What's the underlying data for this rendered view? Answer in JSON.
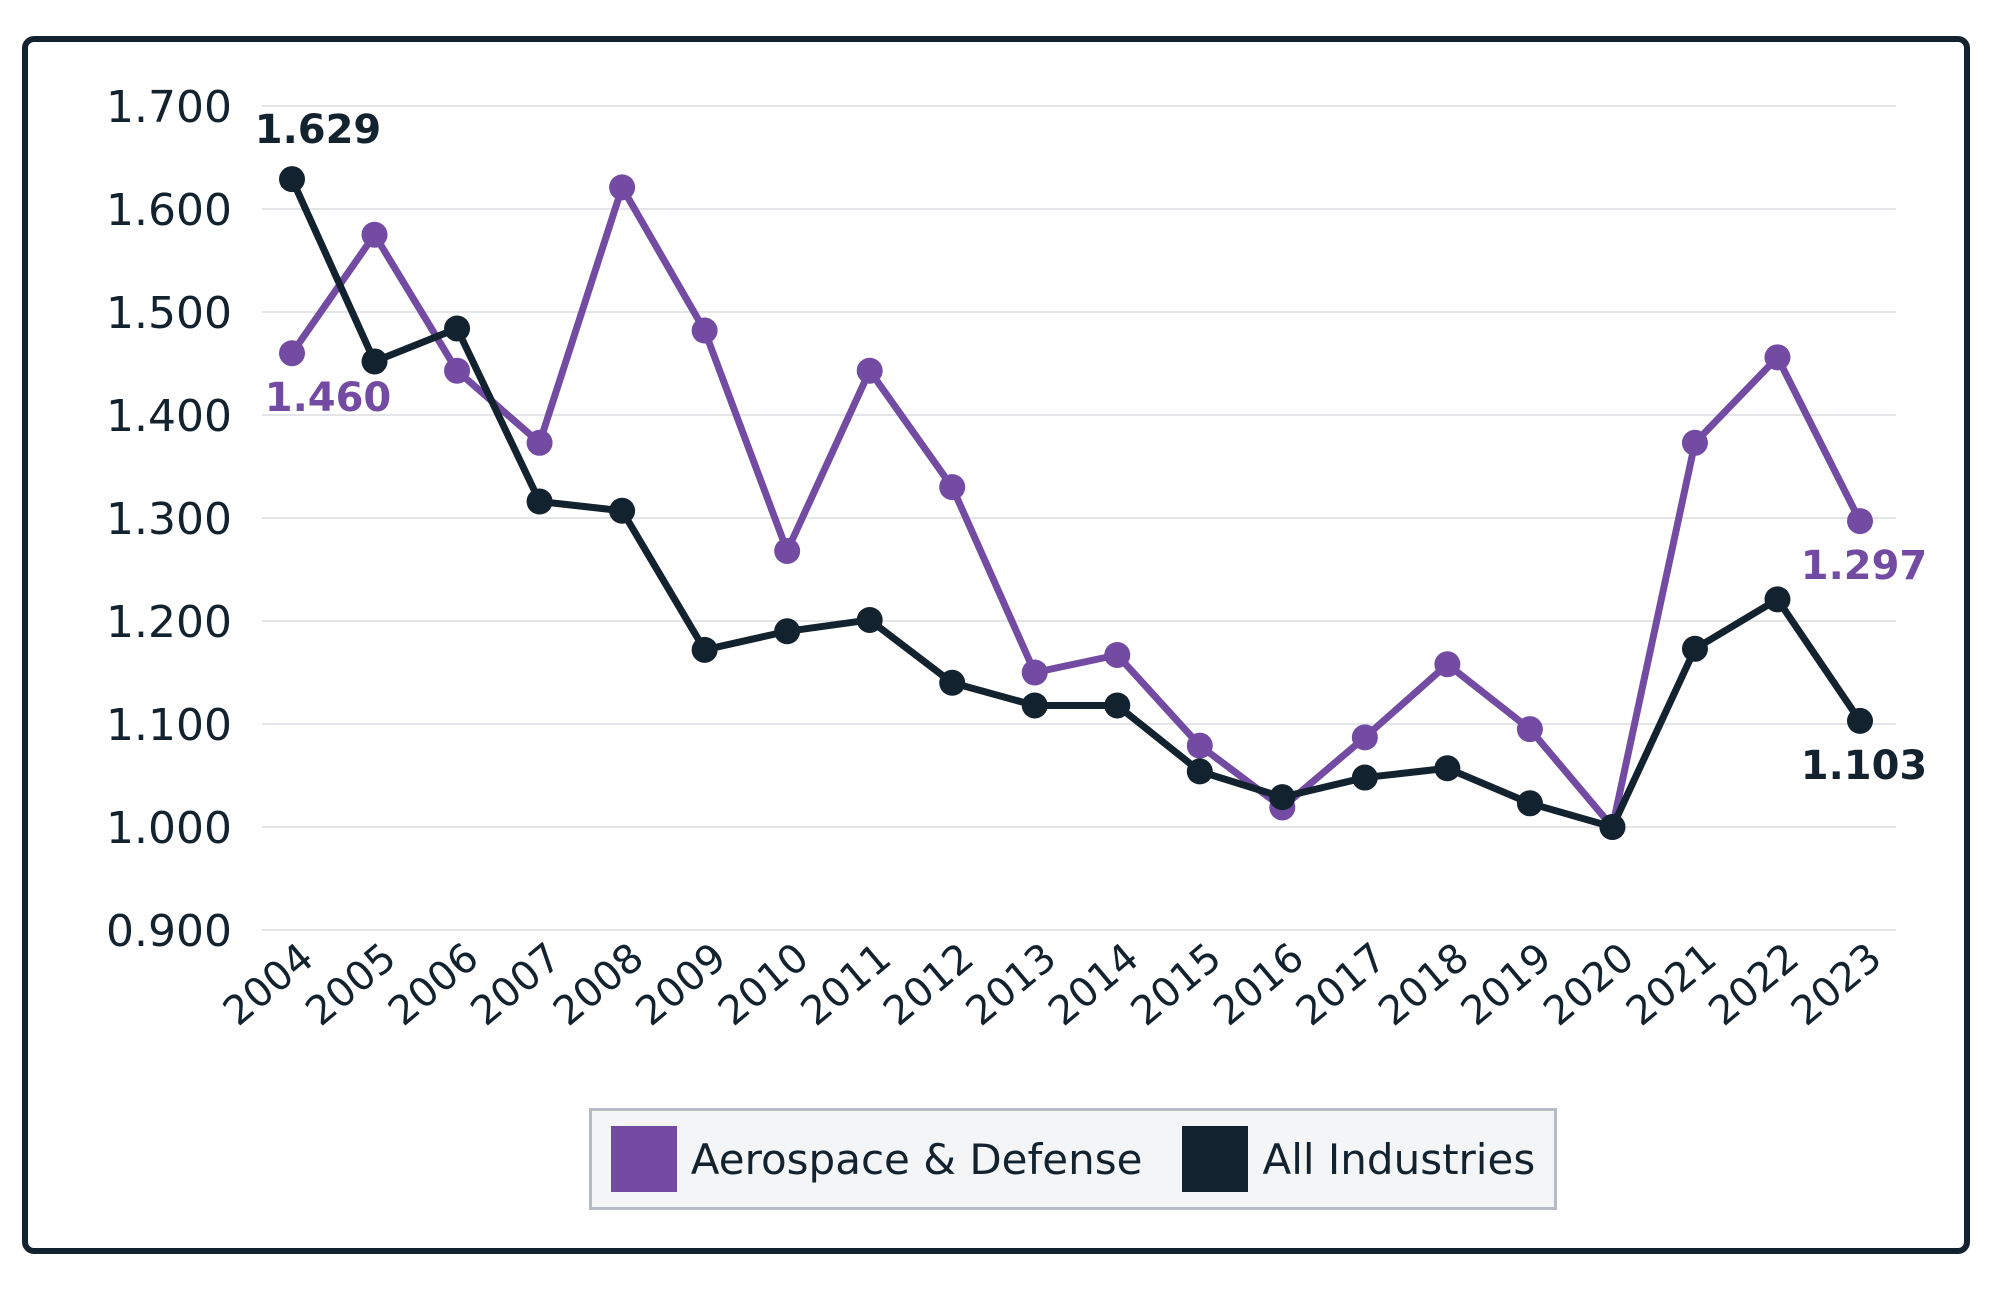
{
  "chart_data": {
    "type": "line",
    "title": "",
    "xlabel": "",
    "ylabel": "",
    "ylim": [
      0.9,
      1.7
    ],
    "y_ticks": [
      "0.900",
      "1.000",
      "1.100",
      "1.200",
      "1.300",
      "1.400",
      "1.500",
      "1.600",
      "1.700"
    ],
    "grid": true,
    "legend_position": "bottom",
    "categories": [
      "2004",
      "2005",
      "2006",
      "2007",
      "2008",
      "2009",
      "2010",
      "2011",
      "2012",
      "2013",
      "2014",
      "2015",
      "2016",
      "2017",
      "2018",
      "2019",
      "2020",
      "2021",
      "2022",
      "2023"
    ],
    "series": [
      {
        "name": "Aerospace & Defense",
        "color": "#734ba3",
        "values": [
          1.46,
          1.575,
          1.443,
          1.373,
          1.621,
          1.482,
          1.268,
          1.443,
          1.33,
          1.15,
          1.167,
          1.079,
          1.019,
          1.087,
          1.158,
          1.095,
          1.0,
          1.373,
          1.456,
          1.297
        ]
      },
      {
        "name": "All Industries",
        "color": "#13222f",
        "values": [
          1.629,
          1.452,
          1.484,
          1.316,
          1.307,
          1.172,
          1.19,
          1.201,
          1.14,
          1.118,
          1.118,
          1.054,
          1.029,
          1.048,
          1.057,
          1.023,
          1.0,
          1.173,
          1.221,
          1.103
        ]
      }
    ],
    "data_labels": [
      {
        "series": 1,
        "index": 0,
        "text": "1.629",
        "position": "above"
      },
      {
        "series": 0,
        "index": 0,
        "text": "1.460",
        "position": "below-right"
      },
      {
        "series": 0,
        "index": 19,
        "text": "1.297",
        "position": "below"
      },
      {
        "series": 1,
        "index": 19,
        "text": "1.103",
        "position": "below"
      }
    ]
  }
}
